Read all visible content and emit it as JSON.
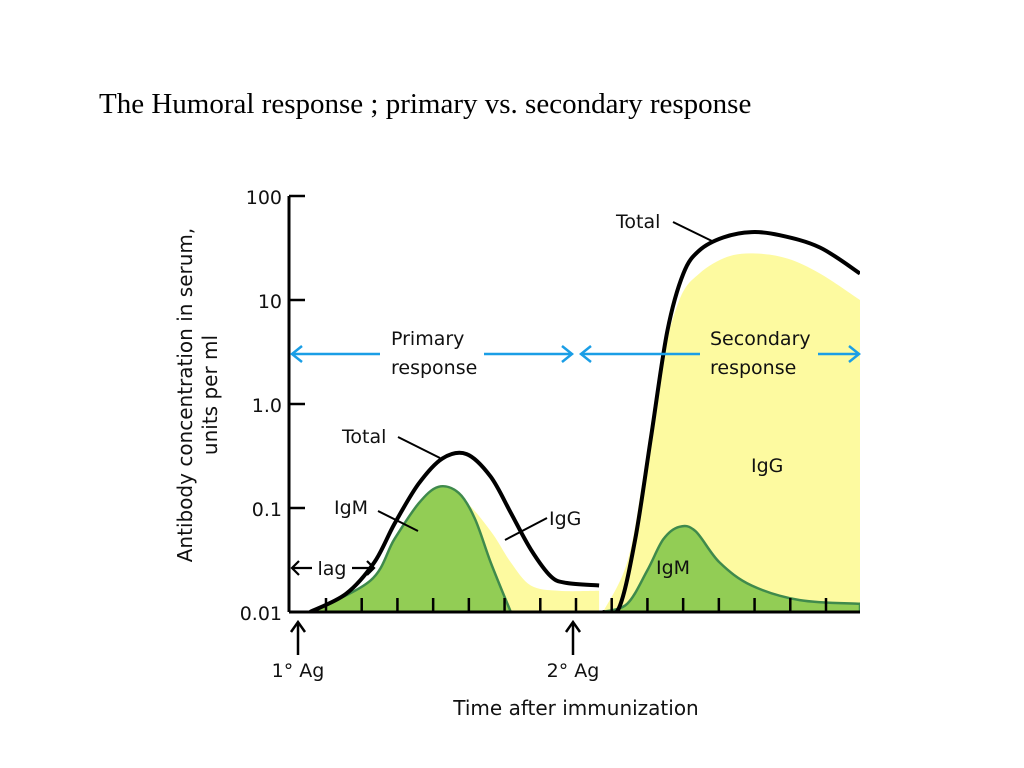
{
  "slide": {
    "title": "The Humoral response ; primary vs. secondary response"
  },
  "chart_data": {
    "type": "area",
    "y_scale": "log",
    "ylabel_line1": "Antibody concentration in serum,",
    "ylabel_line2": "units per ml",
    "xlabel": "Time after immunization",
    "y_ticks": [
      {
        "value": 100,
        "label": "100"
      },
      {
        "value": 10,
        "label": "10"
      },
      {
        "value": 1,
        "label": "1.0"
      },
      {
        "value": 0.1,
        "label": "0.1"
      },
      {
        "value": 0.01,
        "label": "0.01"
      }
    ],
    "ylim": [
      0.01,
      100
    ],
    "x_tick_count": 15,
    "events": [
      {
        "label": "1° Ag",
        "t": 0
      },
      {
        "label": "2° Ag",
        "t": 7.5
      }
    ],
    "phases": {
      "lag": "lag",
      "primary_line1": "Primary",
      "primary_line2": "response",
      "secondary_line1": "Secondary",
      "secondary_line2": "response"
    },
    "series": [
      {
        "name": "Total",
        "values": [
          [
            0.3,
            0.01
          ],
          [
            1.2,
            0.015
          ],
          [
            1.9,
            0.03
          ],
          [
            2.4,
            0.07
          ],
          [
            3.0,
            0.17
          ],
          [
            3.6,
            0.3
          ],
          [
            4.2,
            0.33
          ],
          [
            4.8,
            0.2
          ],
          [
            5.3,
            0.09
          ],
          [
            5.8,
            0.04
          ],
          [
            6.3,
            0.022
          ],
          [
            6.7,
            0.019
          ],
          [
            7.5,
            0.018
          ]
        ],
        "values_secondary": [
          [
            7.6,
            0.01
          ],
          [
            8.0,
            0.011
          ],
          [
            8.4,
            0.05
          ],
          [
            8.8,
            0.5
          ],
          [
            9.2,
            5.0
          ],
          [
            9.6,
            18
          ],
          [
            10.0,
            30
          ],
          [
            10.6,
            40
          ],
          [
            11.3,
            45
          ],
          [
            12.0,
            42
          ],
          [
            13.0,
            32
          ],
          [
            14.0,
            18
          ]
        ]
      },
      {
        "name": "IgM",
        "values": [
          [
            0.3,
            0.01
          ],
          [
            1.8,
            0.02
          ],
          [
            2.4,
            0.05
          ],
          [
            3.0,
            0.11
          ],
          [
            3.5,
            0.16
          ],
          [
            4.0,
            0.14
          ],
          [
            4.4,
            0.08
          ],
          [
            4.8,
            0.03
          ],
          [
            5.3,
            0.01
          ]
        ],
        "values_secondary": [
          [
            7.6,
            0.01
          ],
          [
            8.2,
            0.012
          ],
          [
            8.7,
            0.025
          ],
          [
            9.1,
            0.05
          ],
          [
            9.5,
            0.066
          ],
          [
            9.9,
            0.06
          ],
          [
            10.5,
            0.03
          ],
          [
            11.3,
            0.018
          ],
          [
            12.5,
            0.013
          ],
          [
            14.0,
            0.012
          ]
        ]
      },
      {
        "name": "IgG",
        "values": [
          [
            3.5,
            0.12
          ],
          [
            4.1,
            0.12
          ],
          [
            4.8,
            0.06
          ],
          [
            5.3,
            0.03
          ],
          [
            5.8,
            0.018
          ],
          [
            6.5,
            0.016
          ],
          [
            7.5,
            0.016
          ]
        ],
        "values_secondary": [
          [
            7.6,
            0.01
          ],
          [
            8.2,
            0.03
          ],
          [
            8.6,
            0.2
          ],
          [
            9.0,
            2.0
          ],
          [
            9.5,
            10
          ],
          [
            10.0,
            18
          ],
          [
            10.7,
            26
          ],
          [
            11.4,
            28
          ],
          [
            12.2,
            25
          ],
          [
            13.0,
            18
          ],
          [
            14.0,
            10
          ]
        ]
      }
    ],
    "labels": {
      "total_primary": "Total",
      "total_secondary": "Total",
      "igm_primary": "IgM",
      "igg_primary": "IgG",
      "igm_secondary": "IgM",
      "igg_secondary": "IgG"
    },
    "colors": {
      "total": "#000000",
      "igm_fill": "#92cd55",
      "igm_line": "#3f8a4c",
      "igg_fill": "#fdfaa0",
      "phase_arrow": "#1a9ee6"
    }
  }
}
